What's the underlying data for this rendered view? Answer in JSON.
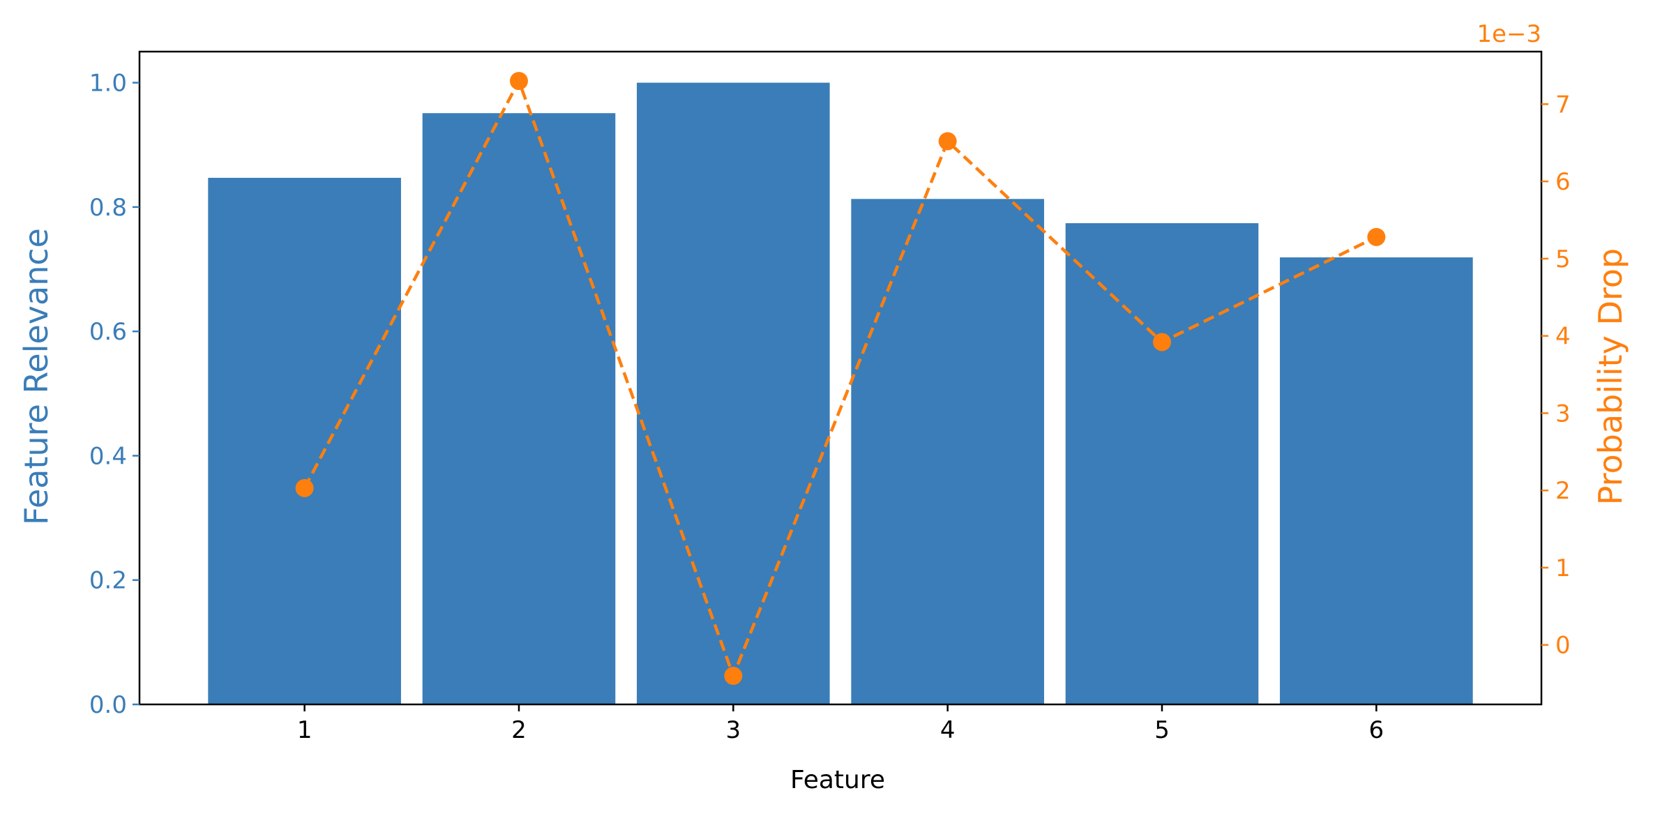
{
  "chart_data": {
    "type": "bar",
    "x_label": "Feature",
    "categories": [
      "1",
      "2",
      "3",
      "4",
      "5",
      "6"
    ],
    "left_axis": {
      "label": "Feature Relevance",
      "color": "#3a7db8",
      "ylim": [
        0.0,
        1.05
      ],
      "ticks": [
        0.0,
        0.2,
        0.4,
        0.6,
        0.8,
        1.0
      ],
      "tick_labels": [
        "0.0",
        "0.2",
        "0.4",
        "0.6",
        "0.8",
        "1.0"
      ]
    },
    "right_axis": {
      "label": "Probability Drop",
      "color": "#ff7f0e",
      "offset_text": "1e−3",
      "scale": 0.001,
      "ylim": [
        -0.00077,
        0.00768
      ],
      "ticks": [
        0,
        1,
        2,
        3,
        4,
        5,
        6,
        7
      ],
      "tick_labels": [
        "0",
        "1",
        "2",
        "3",
        "4",
        "5",
        "6",
        "7"
      ]
    },
    "series": [
      {
        "type": "bar",
        "axis": "left",
        "color": "#3a7db8",
        "values": [
          0.847,
          0.951,
          1.0,
          0.813,
          0.774,
          0.719
        ]
      },
      {
        "type": "line",
        "axis": "right",
        "style": "dashed",
        "marker": "circle",
        "color": "#ff7f0e",
        "values": [
          0.00203,
          0.0073,
          -0.0004,
          0.00652,
          0.00392,
          0.00528
        ]
      }
    ],
    "grid": false,
    "legend": "none"
  }
}
